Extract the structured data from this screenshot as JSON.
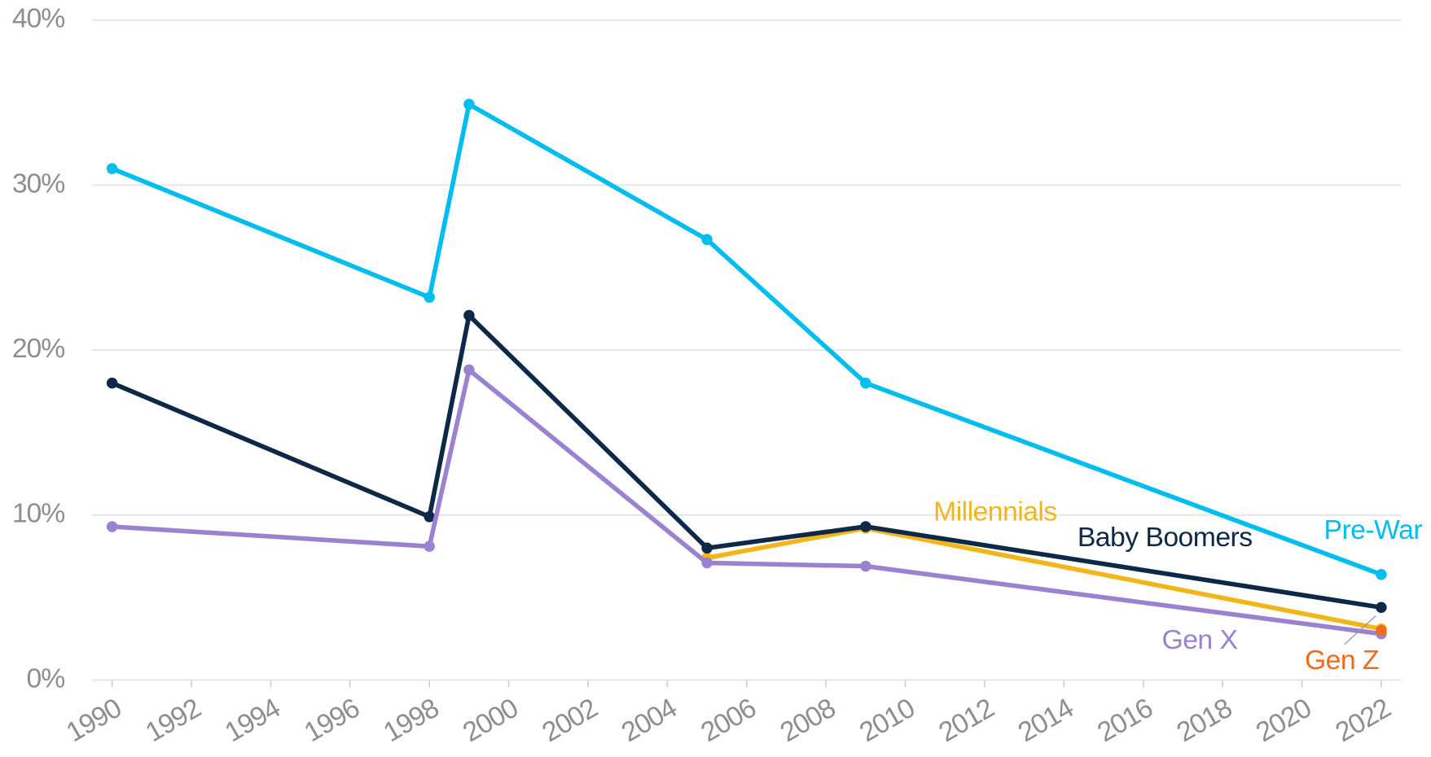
{
  "chart_data": {
    "type": "line",
    "x": [
      1990,
      1998,
      1999,
      2005,
      2009,
      2022
    ],
    "series": [
      {
        "name": "Pre-War",
        "color": "#00bdf0",
        "values": [
          31,
          23.2,
          34.9,
          26.7,
          18,
          6.4
        ]
      },
      {
        "name": "Millennials",
        "color": "#f2b51a",
        "values": [
          null,
          null,
          null,
          7.4,
          9.2,
          3.1
        ]
      },
      {
        "name": "Baby Boomers",
        "color": "#0e2948",
        "values": [
          18,
          9.9,
          22.1,
          8,
          9.3,
          4.4
        ]
      },
      {
        "name": "Gen X",
        "color": "#9b82d1",
        "values": [
          9.3,
          8.1,
          18.8,
          7.1,
          6.9,
          2.8
        ]
      },
      {
        "name": "Gen Z",
        "color": "#f26a1b",
        "values": [
          null,
          null,
          null,
          null,
          null,
          3.0
        ]
      }
    ],
    "xlim": [
      1990,
      2022
    ],
    "xticks": [
      1990,
      1992,
      1994,
      1996,
      1998,
      2000,
      2002,
      2004,
      2006,
      2008,
      2010,
      2012,
      2014,
      2016,
      2018,
      2020,
      2022
    ],
    "ylim": [
      0,
      40
    ],
    "yticks": [
      {
        "value": 0,
        "label": "0%"
      },
      {
        "value": 10,
        "label": "10%"
      },
      {
        "value": 20,
        "label": "20%"
      },
      {
        "value": 30,
        "label": "30%"
      },
      {
        "value": 40,
        "label": "40%"
      }
    ],
    "grid": true
  }
}
